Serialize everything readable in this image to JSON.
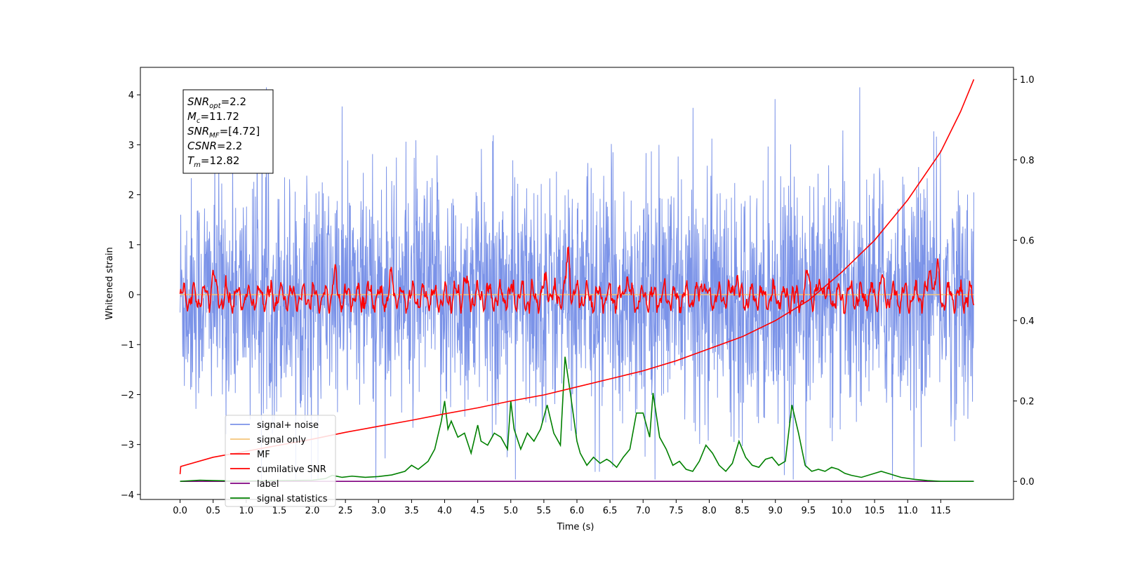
{
  "chart_data": {
    "type": "line",
    "xlabel": "Time (s)",
    "ylabel": "Whitened strain",
    "xlim": [
      -0.6,
      12.6
    ],
    "ylim": [
      -4.1,
      4.55
    ],
    "y2lim": [
      -0.045,
      1.03
    ],
    "x_ticks": [
      "0.0",
      "0.5",
      "1.0",
      "1.5",
      "2.0",
      "2.5",
      "3.0",
      "3.5",
      "4.0",
      "4.5",
      "5.0",
      "5.5",
      "6.0",
      "6.5",
      "7.0",
      "7.5",
      "8.0",
      "8.5",
      "9.0",
      "9.5",
      "10.0",
      "10.5",
      "11.0",
      "11.5"
    ],
    "y_ticks": [
      "4",
      "3",
      "2",
      "1",
      "0",
      "−1",
      "−2",
      "−3",
      "−4"
    ],
    "y2_ticks": [
      "1.0",
      "0.8",
      "0.6",
      "0.4",
      "0.2",
      "0.0"
    ],
    "grid": false,
    "legend_position": "lower-left",
    "annotation": [
      {
        "base": "SNR",
        "sub": "opt",
        "value": "=2.2"
      },
      {
        "base": "M",
        "sub": "c",
        "value": "=11.72"
      },
      {
        "base": "SNR",
        "sub": "MF",
        "value": "=[4.72]"
      },
      {
        "base": "CSNR",
        "sub": "",
        "value": "=2.2"
      },
      {
        "base": "T",
        "sub": "m",
        "value": "=12.82"
      }
    ],
    "series": [
      {
        "name": "signal+ noise",
        "color": "#7b93e8",
        "axis": "left",
        "kind": "noise",
        "x_range": [
          0,
          12.0
        ],
        "amplitude_range": [
          -3.7,
          4.15
        ]
      },
      {
        "name": "signal only",
        "color": "#f5c57a",
        "axis": "left",
        "kind": "flat",
        "x_range": [
          0,
          12.0
        ],
        "value": 0
      },
      {
        "name": "MF",
        "color": "#ff0000",
        "axis": "left",
        "kind": "oscillation",
        "x_range": [
          0,
          12.0
        ],
        "peaks": [
          [
            5.87,
            1.0
          ],
          [
            9.5,
            0.62
          ],
          [
            8.4,
            0.62
          ],
          [
            11.35,
            0.75
          ],
          [
            11.45,
            0.6
          ],
          [
            0.5,
            0.6
          ],
          [
            2.33,
            0.5
          ],
          [
            3.2,
            0.45
          ],
          [
            4.3,
            0.5
          ],
          [
            5.55,
            0.5
          ],
          [
            6.75,
            0.55
          ],
          [
            7.9,
            0.5
          ],
          [
            9.7,
            0.55
          ],
          [
            10.6,
            0.45
          ]
        ]
      },
      {
        "name": "cumilative SNR",
        "color": "#ff0000",
        "axis": "right",
        "x": [
          0,
          0.01,
          0.5,
          1.0,
          1.5,
          2.0,
          2.5,
          3.0,
          3.5,
          4.0,
          4.5,
          5.0,
          5.5,
          6.0,
          6.5,
          7.0,
          7.5,
          8.0,
          8.5,
          9.0,
          9.5,
          10.0,
          10.5,
          11.0,
          11.5,
          11.8,
          12.0
        ],
        "values": [
          0.018,
          0.037,
          0.06,
          0.075,
          0.09,
          0.105,
          0.122,
          0.137,
          0.152,
          0.168,
          0.183,
          0.2,
          0.215,
          0.235,
          0.255,
          0.275,
          0.3,
          0.33,
          0.36,
          0.4,
          0.45,
          0.52,
          0.6,
          0.7,
          0.82,
          0.92,
          1.0
        ]
      },
      {
        "name": "label",
        "color": "#800080",
        "axis": "right",
        "x": [
          0,
          12.0
        ],
        "values": [
          0,
          0
        ]
      },
      {
        "name": "signal statistics",
        "color": "#008000",
        "axis": "right",
        "x": [
          0,
          0.3,
          0.5,
          0.8,
          1.0,
          1.5,
          2.0,
          2.2,
          2.3,
          2.45,
          2.6,
          2.8,
          3.0,
          3.2,
          3.4,
          3.5,
          3.6,
          3.75,
          3.85,
          3.95,
          4.0,
          4.05,
          4.1,
          4.2,
          4.3,
          4.4,
          4.5,
          4.55,
          4.65,
          4.75,
          4.85,
          4.95,
          5.0,
          5.05,
          5.15,
          5.25,
          5.35,
          5.45,
          5.55,
          5.65,
          5.75,
          5.82,
          5.9,
          6.0,
          6.05,
          6.15,
          6.25,
          6.35,
          6.45,
          6.5,
          6.6,
          6.7,
          6.8,
          6.9,
          7.0,
          7.1,
          7.15,
          7.25,
          7.35,
          7.45,
          7.55,
          7.65,
          7.75,
          7.85,
          7.95,
          8.05,
          8.15,
          8.25,
          8.35,
          8.45,
          8.55,
          8.65,
          8.75,
          8.85,
          8.95,
          9.05,
          9.15,
          9.25,
          9.35,
          9.45,
          9.55,
          9.65,
          9.75,
          9.85,
          9.95,
          10.05,
          10.15,
          10.3,
          10.5,
          10.6,
          10.7,
          10.9,
          11.1,
          11.3,
          11.5,
          11.7,
          12.0
        ],
        "values": [
          0.0,
          0.003,
          0.002,
          0.001,
          0.001,
          0.002,
          0.003,
          0.007,
          0.015,
          0.01,
          0.013,
          0.01,
          0.012,
          0.016,
          0.025,
          0.04,
          0.03,
          0.05,
          0.08,
          0.15,
          0.2,
          0.13,
          0.15,
          0.11,
          0.12,
          0.07,
          0.14,
          0.1,
          0.09,
          0.12,
          0.11,
          0.08,
          0.2,
          0.13,
          0.08,
          0.12,
          0.1,
          0.13,
          0.19,
          0.12,
          0.09,
          0.31,
          0.22,
          0.1,
          0.07,
          0.04,
          0.06,
          0.045,
          0.055,
          0.05,
          0.035,
          0.06,
          0.08,
          0.17,
          0.17,
          0.11,
          0.22,
          0.11,
          0.08,
          0.04,
          0.05,
          0.03,
          0.025,
          0.05,
          0.09,
          0.07,
          0.04,
          0.025,
          0.045,
          0.1,
          0.06,
          0.04,
          0.035,
          0.055,
          0.06,
          0.04,
          0.05,
          0.19,
          0.12,
          0.04,
          0.025,
          0.03,
          0.025,
          0.035,
          0.03,
          0.02,
          0.015,
          0.01,
          0.02,
          0.025,
          0.02,
          0.01,
          0.005,
          0.002,
          0.0,
          0.0,
          0.0
        ]
      }
    ]
  }
}
